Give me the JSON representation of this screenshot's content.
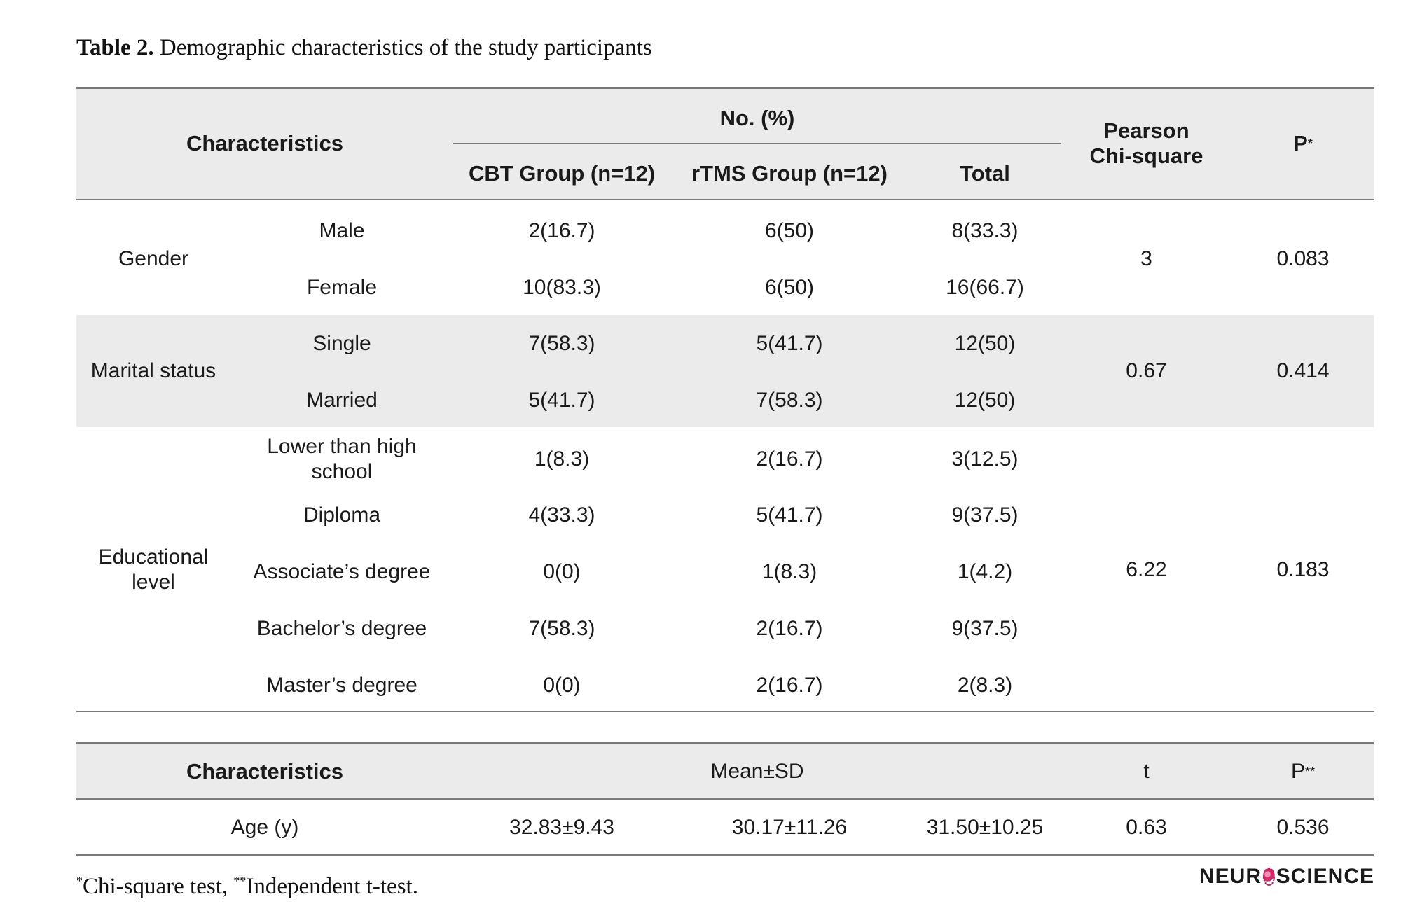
{
  "caption": {
    "label": "Table 2.",
    "text": "Demographic characteristics of the study participants"
  },
  "table1": {
    "header": {
      "characteristics": "Characteristics",
      "no_pct": "No. (%)",
      "cbt": "CBT Group (n=12)",
      "rtms": "rTMS Group (n=12)",
      "total": "Total",
      "pearson_line1": "Pearson",
      "pearson_line2": "Chi-square",
      "p": "P",
      "p_mark": "*"
    },
    "gender": {
      "label": "Gender",
      "chi": "3",
      "p": "0.083",
      "rows": [
        {
          "sub": "Male",
          "cbt": "2(16.7)",
          "rtms": "6(50)",
          "total": "8(33.3)"
        },
        {
          "sub": "Female",
          "cbt": "10(83.3)",
          "rtms": "6(50)",
          "total": "16(66.7)"
        }
      ]
    },
    "marital": {
      "label": "Marital status",
      "chi": "0.67",
      "p": "0.414",
      "rows": [
        {
          "sub": "Single",
          "cbt": "7(58.3)",
          "rtms": "5(41.7)",
          "total": "12(50)"
        },
        {
          "sub": "Married",
          "cbt": "5(41.7)",
          "rtms": "7(58.3)",
          "total": "12(50)"
        }
      ]
    },
    "education": {
      "label_line1": "Educational",
      "label_line2": "level",
      "chi": "6.22",
      "p": "0.183",
      "rows": [
        {
          "sub_line1": "Lower than high",
          "sub_line2": "school",
          "cbt": "1(8.3)",
          "rtms": "2(16.7)",
          "total": "3(12.5)"
        },
        {
          "sub": "Diploma",
          "cbt": "4(33.3)",
          "rtms": "5(41.7)",
          "total": "9(37.5)"
        },
        {
          "sub": "Associate’s degree",
          "cbt": "0(0)",
          "rtms": "1(8.3)",
          "total": "1(4.2)"
        },
        {
          "sub": "Bachelor’s degree",
          "cbt": "7(58.3)",
          "rtms": "2(16.7)",
          "total": "9(37.5)"
        },
        {
          "sub": "Master’s degree",
          "cbt": "0(0)",
          "rtms": "2(16.7)",
          "total": "2(8.3)"
        }
      ]
    }
  },
  "table2": {
    "header": {
      "characteristics": "Characteristics",
      "mean_sd": "Mean±SD",
      "t": "t",
      "p": "P",
      "p_mark": "**"
    },
    "row": {
      "label": "Age (y)",
      "cbt": "32.83±9.43",
      "rtms": "30.17±11.26",
      "total": "31.50±10.25",
      "t": "0.63",
      "p": "0.536"
    }
  },
  "footnote": {
    "mark1": "*",
    "text1": "Chi-square test, ",
    "mark2": "**",
    "text2": "Independent t-test."
  },
  "logo": {
    "part1": "NEUR",
    "part2": "SCIENCE"
  }
}
